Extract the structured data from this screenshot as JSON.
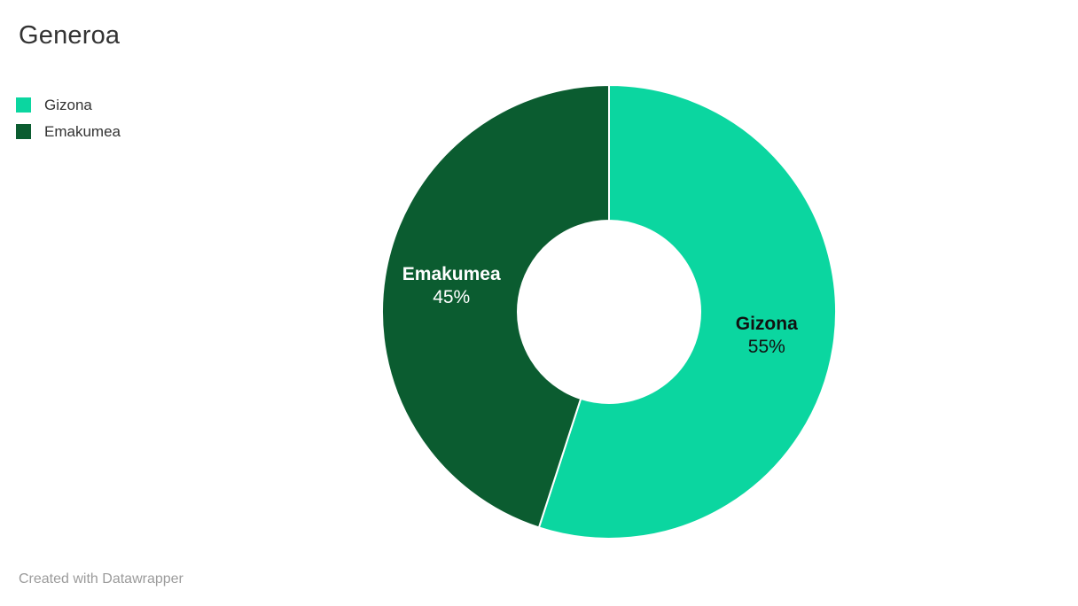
{
  "header": {
    "title": "Generoa"
  },
  "legend": {
    "items": [
      {
        "label": "Gizona",
        "color": "#0bd6a0"
      },
      {
        "label": "Emakumea",
        "color": "#0b5c30"
      }
    ]
  },
  "footer": {
    "credit": "Created with Datawrapper"
  },
  "chart_data": {
    "type": "pie",
    "title": "Generoa",
    "donut": true,
    "start_angle_deg": 0,
    "direction": "clockwise",
    "legend_position": "top-left",
    "slices": [
      {
        "label": "Gizona",
        "value": 55,
        "display": "55%",
        "color": "#0bd6a0",
        "label_color": "#111111"
      },
      {
        "label": "Emakumea",
        "value": 45,
        "display": "45%",
        "color": "#0b5c30",
        "label_color": "#ffffff"
      }
    ]
  }
}
